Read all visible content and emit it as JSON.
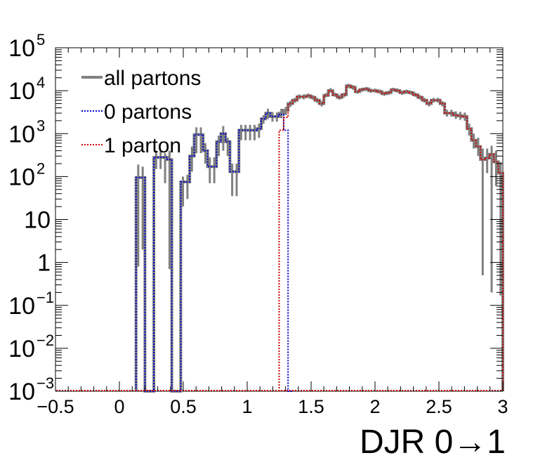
{
  "chart_data": {
    "type": "step-histogram",
    "title": "",
    "xlabel": "DJR 0→1",
    "ylabel": "",
    "x_range": [
      -0.5,
      3.0
    ],
    "y_range": [
      0.001,
      100000
    ],
    "y_scale": "log",
    "bin_width": 0.035,
    "grid": false,
    "legend_placement": "top-left",
    "x_ticks": [
      {
        "value": -0.5,
        "label": "−0.5"
      },
      {
        "value": 0,
        "label": "0"
      },
      {
        "value": 0.5,
        "label": "0.5"
      },
      {
        "value": 1,
        "label": "1"
      },
      {
        "value": 1.5,
        "label": "1.5"
      },
      {
        "value": 2,
        "label": "2"
      },
      {
        "value": 2.5,
        "label": "2.5"
      },
      {
        "value": 3,
        "label": "3"
      }
    ],
    "y_ticks": [
      {
        "value": 100000,
        "base": "10",
        "exp": "5"
      },
      {
        "value": 10000,
        "base": "10",
        "exp": "4"
      },
      {
        "value": 1000,
        "base": "10",
        "exp": "3"
      },
      {
        "value": 100,
        "base": "10",
        "exp": "2"
      },
      {
        "value": 10,
        "base": "10",
        "exp": ""
      },
      {
        "value": 1,
        "base": "1",
        "exp": ""
      },
      {
        "value": 0.1,
        "base": "10",
        "exp": "−1"
      },
      {
        "value": 0.01,
        "base": "10",
        "exp": "−2"
      },
      {
        "value": 0.001,
        "base": "10",
        "exp": "−3"
      }
    ],
    "series": [
      {
        "name": "all partons",
        "color": "#808080",
        "style": "solid",
        "bins": [
          [
            0.13,
            95,
            190,
            0.8
          ],
          [
            0.165,
            95,
            170,
            2
          ],
          [
            0.2,
            0.001,
            null,
            null
          ],
          [
            0.235,
            0.001,
            null,
            null
          ],
          [
            0.27,
            280,
            400,
            150
          ],
          [
            0.305,
            280,
            400,
            150
          ],
          [
            0.34,
            280,
            350,
            70
          ],
          [
            0.375,
            250,
            400,
            0.7
          ],
          [
            0.41,
            0.001,
            null,
            null
          ],
          [
            0.445,
            0.001,
            null,
            null
          ],
          [
            0.48,
            75,
            100,
            20
          ],
          [
            0.515,
            75,
            110,
            30
          ],
          [
            0.55,
            300,
            500,
            130
          ],
          [
            0.585,
            950,
            1400,
            350
          ],
          [
            0.62,
            950,
            1400,
            350
          ],
          [
            0.655,
            400,
            600,
            200
          ],
          [
            0.69,
            170,
            280,
            70
          ],
          [
            0.725,
            170,
            280,
            70
          ],
          [
            0.76,
            650,
            900,
            300
          ],
          [
            0.795,
            1000,
            1500,
            400
          ],
          [
            0.83,
            650,
            800,
            300
          ],
          [
            0.865,
            130,
            200,
            35
          ],
          [
            0.9,
            130,
            200,
            35
          ],
          [
            0.935,
            1200,
            1600,
            700
          ],
          [
            0.97,
            1200,
            1600,
            700
          ],
          [
            1.005,
            1200,
            1600,
            700
          ],
          [
            1.04,
            1200,
            1600,
            700
          ],
          [
            1.075,
            1300,
            1700,
            800
          ],
          [
            1.11,
            2200,
            2700,
            1700
          ],
          [
            1.145,
            3000,
            3800,
            2200
          ],
          [
            1.18,
            2500,
            3200,
            1900
          ],
          [
            1.215,
            2500,
            3100,
            1900
          ],
          [
            1.25,
            3000,
            3800,
            2300
          ],
          [
            1.285,
            3500,
            4200,
            2700
          ],
          [
            1.32,
            5000,
            5800,
            4200
          ],
          [
            1.355,
            6000,
            6800,
            5200
          ],
          [
            1.39,
            7200,
            8200,
            6300
          ],
          [
            1.425,
            7200,
            8200,
            6300
          ],
          [
            1.46,
            7600,
            8600,
            6800
          ],
          [
            1.495,
            7000,
            7900,
            6200
          ],
          [
            1.53,
            6000,
            6800,
            5200
          ],
          [
            1.565,
            5000,
            5800,
            4300
          ],
          [
            1.6,
            7800,
            8800,
            7000
          ],
          [
            1.635,
            10000,
            11500,
            9000
          ],
          [
            1.67,
            8000,
            9000,
            7200
          ],
          [
            1.705,
            7000,
            7900,
            6200
          ],
          [
            1.74,
            8000,
            9000,
            7000
          ],
          [
            1.775,
            13000,
            14500,
            11500
          ],
          [
            1.81,
            12000,
            13500,
            10500
          ],
          [
            1.845,
            9500,
            10500,
            8500
          ],
          [
            1.88,
            10500,
            11700,
            9500
          ],
          [
            1.915,
            11000,
            12200,
            9900
          ],
          [
            1.95,
            10000,
            11200,
            9000
          ],
          [
            1.985,
            10000,
            11200,
            9000
          ],
          [
            2.02,
            9500,
            10600,
            8500
          ],
          [
            2.055,
            8500,
            9500,
            7600
          ],
          [
            2.09,
            9000,
            10000,
            8000
          ],
          [
            2.125,
            10500,
            11700,
            9500
          ],
          [
            2.16,
            10000,
            11200,
            9000
          ],
          [
            2.195,
            9000,
            10000,
            8000
          ],
          [
            2.23,
            9500,
            10600,
            8500
          ],
          [
            2.265,
            9000,
            10000,
            8000
          ],
          [
            2.3,
            8000,
            9000,
            7200
          ],
          [
            2.335,
            7000,
            7900,
            6200
          ],
          [
            2.37,
            6000,
            6800,
            5300
          ],
          [
            2.405,
            5000,
            5700,
            4300
          ],
          [
            2.44,
            6000,
            6800,
            5300
          ],
          [
            2.475,
            6000,
            6800,
            5300
          ],
          [
            2.51,
            5000,
            5700,
            4300
          ],
          [
            2.545,
            3000,
            3600,
            2500
          ],
          [
            2.58,
            3000,
            3600,
            2500
          ],
          [
            2.615,
            2700,
            3300,
            2200
          ],
          [
            2.65,
            2600,
            3200,
            2100
          ],
          [
            2.685,
            2500,
            3100,
            2000
          ],
          [
            2.72,
            1300,
            1700,
            900
          ],
          [
            2.755,
            700,
            1000,
            450
          ],
          [
            2.79,
            500,
            800,
            300
          ],
          [
            2.825,
            250,
            450,
            0.5
          ],
          [
            2.86,
            270,
            450,
            120
          ],
          [
            2.895,
            330,
            520,
            0.2
          ],
          [
            2.93,
            220,
            400,
            60
          ],
          [
            2.965,
            120,
            220,
            0.17
          ]
        ]
      },
      {
        "name": "0 partons",
        "color": "#0000cc",
        "style": "dotted",
        "bins": [
          [
            0.13,
            95
          ],
          [
            0.165,
            95
          ],
          [
            0.2,
            0.001
          ],
          [
            0.235,
            0.001
          ],
          [
            0.27,
            280
          ],
          [
            0.305,
            280
          ],
          [
            0.34,
            280
          ],
          [
            0.375,
            250
          ],
          [
            0.41,
            0.001
          ],
          [
            0.445,
            0.001
          ],
          [
            0.48,
            75
          ],
          [
            0.515,
            75
          ],
          [
            0.55,
            300
          ],
          [
            0.585,
            950
          ],
          [
            0.62,
            950
          ],
          [
            0.655,
            400
          ],
          [
            0.69,
            170
          ],
          [
            0.725,
            170
          ],
          [
            0.76,
            650
          ],
          [
            0.795,
            1000
          ],
          [
            0.83,
            650
          ],
          [
            0.865,
            130
          ],
          [
            0.9,
            130
          ],
          [
            0.935,
            1200
          ],
          [
            0.97,
            1200
          ],
          [
            1.005,
            1200
          ],
          [
            1.04,
            1200
          ],
          [
            1.075,
            1300
          ],
          [
            1.11,
            2200
          ],
          [
            1.145,
            3000
          ],
          [
            1.18,
            2500
          ],
          [
            1.215,
            2500
          ],
          [
            1.25,
            2800
          ],
          [
            1.285,
            1200
          ],
          [
            1.32,
            0.001
          ]
        ]
      },
      {
        "name": "1 parton",
        "color": "#cc0000",
        "style": "dotted",
        "bins": [
          [
            1.25,
            1200
          ],
          [
            1.285,
            2400
          ],
          [
            1.32,
            5000
          ],
          [
            1.355,
            6000
          ],
          [
            1.39,
            7200
          ],
          [
            1.425,
            7200
          ],
          [
            1.46,
            7600
          ],
          [
            1.495,
            7000
          ],
          [
            1.53,
            6000
          ],
          [
            1.565,
            5000
          ],
          [
            1.6,
            7800
          ],
          [
            1.635,
            10000
          ],
          [
            1.67,
            8000
          ],
          [
            1.705,
            7000
          ],
          [
            1.74,
            8000
          ],
          [
            1.775,
            13000
          ],
          [
            1.81,
            12000
          ],
          [
            1.845,
            9500
          ],
          [
            1.88,
            10500
          ],
          [
            1.915,
            11000
          ],
          [
            1.95,
            10000
          ],
          [
            1.985,
            10000
          ],
          [
            2.02,
            9500
          ],
          [
            2.055,
            8500
          ],
          [
            2.09,
            9000
          ],
          [
            2.125,
            10500
          ],
          [
            2.16,
            10000
          ],
          [
            2.195,
            9000
          ],
          [
            2.23,
            9500
          ],
          [
            2.265,
            9000
          ],
          [
            2.3,
            8000
          ],
          [
            2.335,
            7000
          ],
          [
            2.37,
            6000
          ],
          [
            2.405,
            5000
          ],
          [
            2.44,
            6000
          ],
          [
            2.475,
            6000
          ],
          [
            2.51,
            5000
          ],
          [
            2.545,
            3000
          ],
          [
            2.58,
            3000
          ],
          [
            2.615,
            2700
          ],
          [
            2.65,
            2600
          ],
          [
            2.685,
            2500
          ],
          [
            2.72,
            1300
          ],
          [
            2.755,
            700
          ],
          [
            2.79,
            500
          ],
          [
            2.825,
            250
          ],
          [
            2.86,
            270
          ],
          [
            2.895,
            330
          ],
          [
            2.93,
            220
          ],
          [
            2.965,
            120
          ]
        ]
      }
    ]
  }
}
